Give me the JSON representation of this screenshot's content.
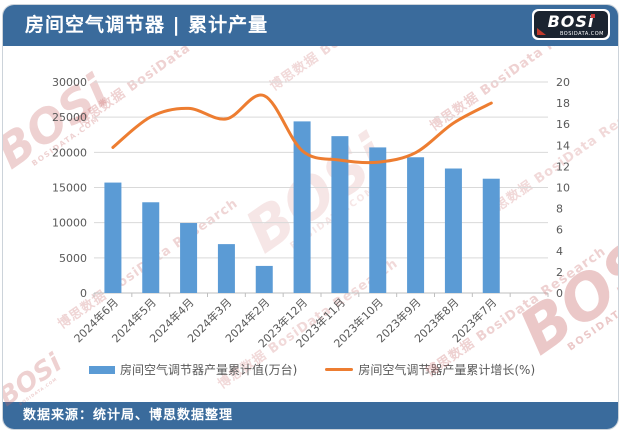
{
  "header": {
    "title": "房间空气调节器 | 累计产量",
    "logo": {
      "brand": "BOSi",
      "domain": "BOSIDATA.COM"
    }
  },
  "footer": {
    "source": "数据来源：统计局、博思数据整理"
  },
  "watermark": {
    "text": "博思数据 BosiData Research",
    "brand": "BOSi",
    "domain": "BOSIDATA.COM"
  },
  "colors": {
    "header_bg": "#3A6B9C",
    "footer_bg": "#3A6B9C",
    "bar": "#5B9BD5",
    "line": "#ED7D31",
    "grid": "#D9D9D9",
    "axis_line": "#BFBFBF",
    "axis_text": "#595959",
    "watermark": "#C96A6A"
  },
  "chart_data": {
    "type": "bar",
    "combo": "bar+line dual-axis",
    "title": "房间空气调节器 | 累计产量",
    "categories": [
      "2024年6月",
      "2024年5月",
      "2024年4月",
      "2024年3月",
      "2024年2月",
      "2023年12月",
      "2023年11月",
      "2023年10月",
      "2023年9月",
      "2023年8月",
      "2023年7月"
    ],
    "series": [
      {
        "name": "房间空气调节器产量累计值(万台)",
        "type": "bar",
        "axis": "left",
        "values": [
          15700,
          12900,
          9950,
          6950,
          3850,
          24400,
          22300,
          20700,
          19300,
          17700,
          16250
        ]
      },
      {
        "name": "房间空气调节器产量累计增长(%)",
        "type": "line",
        "axis": "right",
        "values": [
          13.8,
          16.7,
          17.5,
          16.5,
          18.7,
          13.5,
          12.6,
          12.4,
          13.3,
          16.1,
          18.0
        ]
      }
    ],
    "left_axis": {
      "min": 0,
      "max": 30000,
      "step": 5000
    },
    "right_axis": {
      "min": 0,
      "max": 20,
      "step": 2
    },
    "grid": true,
    "legend_position": "bottom"
  }
}
